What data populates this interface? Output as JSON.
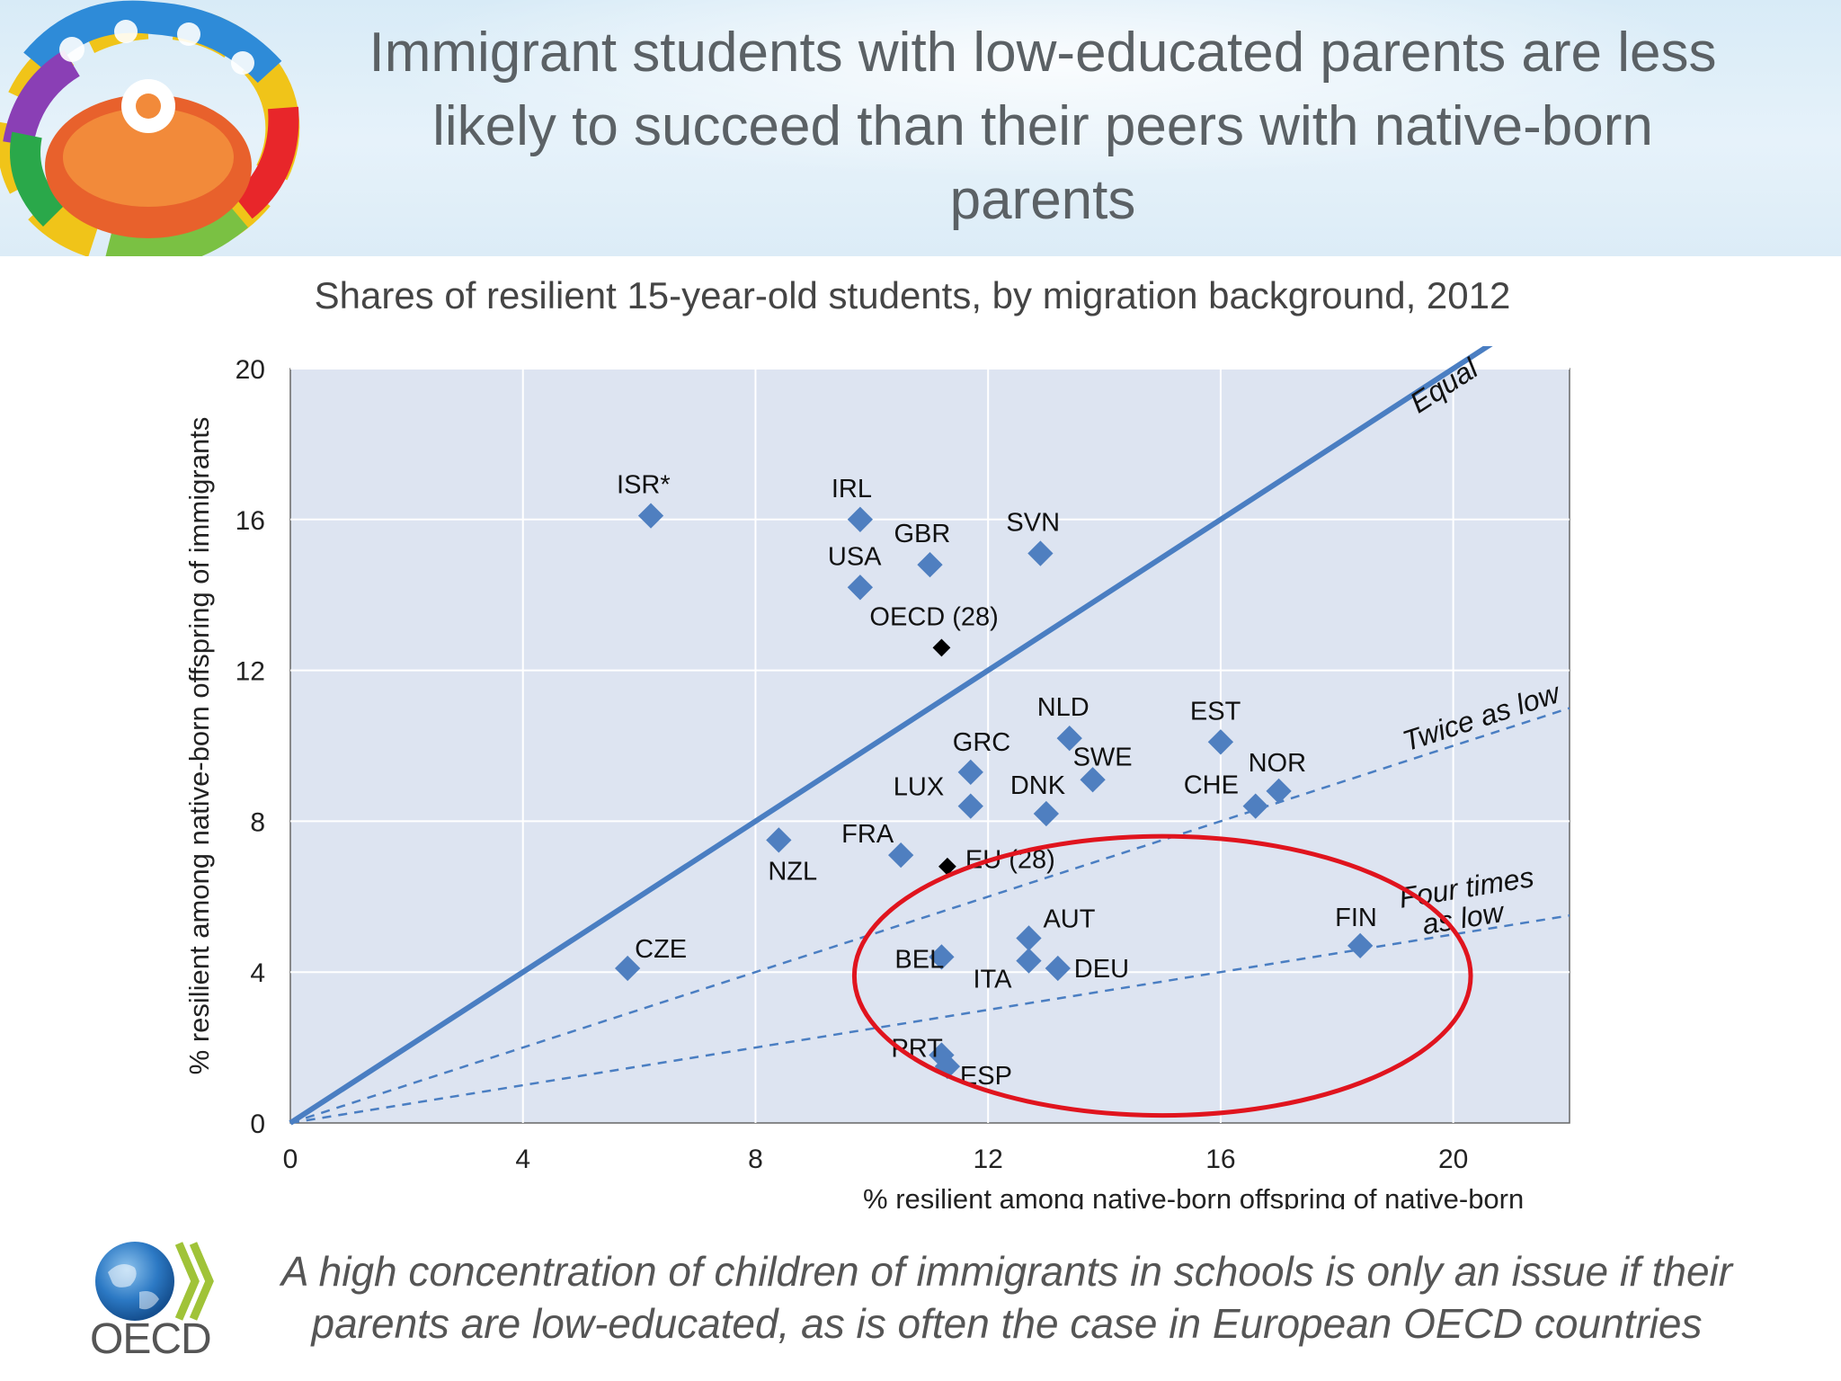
{
  "slide": {
    "title": "Immigrant students with low-educated parents are less likely to succeed than their peers with native-born parents",
    "subtitle": "Shares of resilient 15-year-old students, by migration background, 2012",
    "conclusion": "A high concentration of children of immigrants in schools is only an issue if their parents are low-educated, as is often the case in European OECD countries",
    "logo_text": "OECD"
  },
  "colors": {
    "point": "#4f7fc0",
    "aggregate_point": "#000000",
    "line": "#4a7ec2",
    "plot_bg": "#dde4f1",
    "grid": "#ffffff",
    "highlight_circle": "#e0141e"
  },
  "chart_data": {
    "type": "scatter",
    "xlabel": "% resilient among native-born offspring of native-born",
    "ylabel": "% resilient among native-born offspring of immigrants",
    "xlim": [
      0,
      22
    ],
    "ylim": [
      0,
      20
    ],
    "xticks": [
      0,
      4,
      8,
      12,
      16,
      20
    ],
    "yticks": [
      0,
      4,
      8,
      12,
      16,
      20
    ],
    "grid": true,
    "points": [
      {
        "label": "ISR*",
        "x": 6.2,
        "y": 16.1,
        "type": "country"
      },
      {
        "label": "IRL",
        "x": 9.8,
        "y": 16.0,
        "type": "country"
      },
      {
        "label": "GBR",
        "x": 11.0,
        "y": 14.8,
        "type": "country"
      },
      {
        "label": "SVN",
        "x": 12.9,
        "y": 15.1,
        "type": "country"
      },
      {
        "label": "USA",
        "x": 9.8,
        "y": 14.2,
        "type": "country"
      },
      {
        "label": "OECD (28)",
        "x": 11.2,
        "y": 12.6,
        "type": "aggregate"
      },
      {
        "label": "NLD",
        "x": 13.4,
        "y": 10.2,
        "type": "country"
      },
      {
        "label": "EST",
        "x": 16.0,
        "y": 10.1,
        "type": "country"
      },
      {
        "label": "GRC",
        "x": 11.7,
        "y": 9.3,
        "type": "country"
      },
      {
        "label": "SWE",
        "x": 13.8,
        "y": 9.1,
        "type": "country"
      },
      {
        "label": "NOR",
        "x": 17.0,
        "y": 8.8,
        "type": "country"
      },
      {
        "label": "CHE",
        "x": 16.6,
        "y": 8.4,
        "type": "country"
      },
      {
        "label": "DNK",
        "x": 13.0,
        "y": 8.2,
        "type": "country"
      },
      {
        "label": "LUX",
        "x": 11.7,
        "y": 8.4,
        "type": "country"
      },
      {
        "label": "NZL",
        "x": 8.4,
        "y": 7.5,
        "type": "country"
      },
      {
        "label": "FRA",
        "x": 10.5,
        "y": 7.1,
        "type": "country"
      },
      {
        "label": "EU (28)",
        "x": 11.3,
        "y": 6.8,
        "type": "aggregate"
      },
      {
        "label": "AUT",
        "x": 12.7,
        "y": 4.9,
        "type": "country"
      },
      {
        "label": "FIN",
        "x": 18.4,
        "y": 4.7,
        "type": "country"
      },
      {
        "label": "BEL",
        "x": 11.2,
        "y": 4.4,
        "type": "country"
      },
      {
        "label": "ITA",
        "x": 12.7,
        "y": 4.3,
        "type": "country"
      },
      {
        "label": "DEU",
        "x": 13.2,
        "y": 4.1,
        "type": "country"
      },
      {
        "label": "CZE",
        "x": 5.8,
        "y": 4.1,
        "type": "country"
      },
      {
        "label": "PRT",
        "x": 11.2,
        "y": 1.8,
        "type": "country"
      },
      {
        "label": "ESP",
        "x": 11.3,
        "y": 1.5,
        "type": "country"
      }
    ],
    "reference_lines": [
      {
        "label": "Equal",
        "ratio": 1,
        "style": "solid"
      },
      {
        "label": "Twice as low",
        "ratio": 0.5,
        "style": "dashed"
      },
      {
        "label": "Four times as low",
        "ratio": 0.25,
        "style": "dashed"
      }
    ],
    "highlight": {
      "shape": "ellipse",
      "center": [
        15,
        3.9
      ],
      "radii": [
        5.3,
        3.7
      ]
    }
  }
}
